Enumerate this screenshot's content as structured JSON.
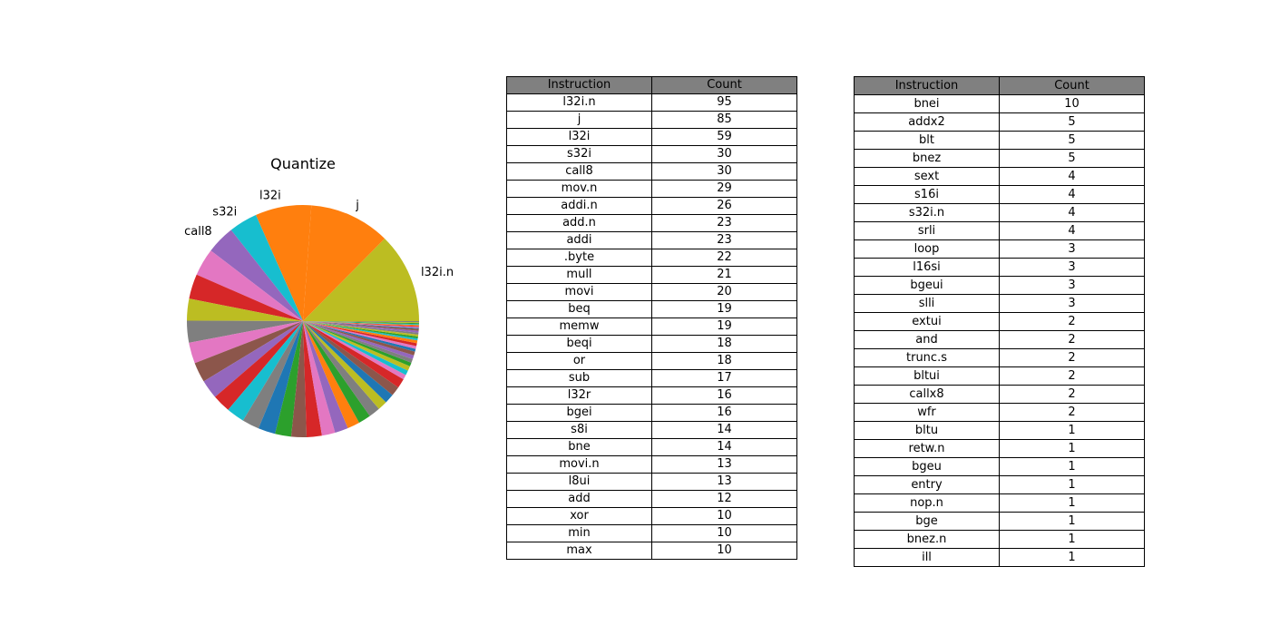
{
  "chart_data": {
    "type": "pie",
    "title": "Quantize",
    "slices": [
      {
        "label": "l32i.n",
        "value": 95,
        "color": "#bcbd22",
        "show_label": true
      },
      {
        "label": "j",
        "value": 85,
        "color": "#ff7f0e",
        "show_label": true
      },
      {
        "label": "l32i",
        "value": 59,
        "color": "#ff7f0e",
        "show_label": true
      },
      {
        "label": "s32i",
        "value": 30,
        "color": "#17becf",
        "show_label": true
      },
      {
        "label": "call8",
        "value": 30,
        "color": "#9467bd",
        "show_label": true
      },
      {
        "label": "mov.n",
        "value": 29,
        "color": "#e377c2",
        "show_label": false
      },
      {
        "label": "addi.n",
        "value": 26,
        "color": "#d62728",
        "show_label": false
      },
      {
        "label": "add.n",
        "value": 23,
        "color": "#bcbd22",
        "show_label": false
      },
      {
        "label": "addi",
        "value": 23,
        "color": "#7f7f7f",
        "show_label": false
      },
      {
        "label": ".byte",
        "value": 22,
        "color": "#e377c2",
        "show_label": false
      },
      {
        "label": "mull",
        "value": 21,
        "color": "#8c564b",
        "show_label": false
      },
      {
        "label": "movi",
        "value": 20,
        "color": "#9467bd",
        "show_label": false
      },
      {
        "label": "beq",
        "value": 19,
        "color": "#d62728",
        "show_label": false
      },
      {
        "label": "memw",
        "value": 19,
        "color": "#17becf",
        "show_label": false
      },
      {
        "label": "beqi",
        "value": 18,
        "color": "#7f7f7f",
        "show_label": false
      },
      {
        "label": "or",
        "value": 18,
        "color": "#1f77b4",
        "show_label": false
      },
      {
        "label": "sub",
        "value": 17,
        "color": "#2ca02c",
        "show_label": false
      },
      {
        "label": "l32r",
        "value": 16,
        "color": "#8c564b",
        "show_label": false
      },
      {
        "label": "bgei",
        "value": 16,
        "color": "#d62728",
        "show_label": false
      },
      {
        "label": "s8i",
        "value": 14,
        "color": "#e377c2",
        "show_label": false
      },
      {
        "label": "bne",
        "value": 14,
        "color": "#9467bd",
        "show_label": false
      },
      {
        "label": "movi.n",
        "value": 13,
        "color": "#ff7f0e",
        "show_label": false
      },
      {
        "label": "l8ui",
        "value": 13,
        "color": "#2ca02c",
        "show_label": false
      },
      {
        "label": "add",
        "value": 12,
        "color": "#7f7f7f",
        "show_label": false
      },
      {
        "label": "xor",
        "value": 10,
        "color": "#bcbd22",
        "show_label": false
      },
      {
        "label": "min",
        "value": 10,
        "color": "#1f77b4",
        "show_label": false
      },
      {
        "label": "max",
        "value": 10,
        "color": "#8c564b",
        "show_label": false
      },
      {
        "label": "bnei",
        "value": 10,
        "color": "#d62728",
        "show_label": false
      },
      {
        "label": "addx2",
        "value": 5,
        "color": "#e377c2",
        "show_label": false
      },
      {
        "label": "blt",
        "value": 5,
        "color": "#17becf",
        "show_label": false
      },
      {
        "label": "bnez",
        "value": 5,
        "color": "#bcbd22",
        "show_label": false
      },
      {
        "label": "sext",
        "value": 4,
        "color": "#2ca02c",
        "show_label": false
      },
      {
        "label": "s16i",
        "value": 4,
        "color": "#7f7f7f",
        "show_label": false
      },
      {
        "label": "s32i.n",
        "value": 4,
        "color": "#9467bd",
        "show_label": false
      },
      {
        "label": "srli",
        "value": 4,
        "color": "#8c564b",
        "show_label": false
      },
      {
        "label": "loop",
        "value": 3,
        "color": "#1f77b4",
        "show_label": false
      },
      {
        "label": "l16si",
        "value": 3,
        "color": "#e377c2",
        "show_label": false
      },
      {
        "label": "bgeui",
        "value": 3,
        "color": "#d62728",
        "show_label": false
      },
      {
        "label": "slli",
        "value": 3,
        "color": "#ff7f0e",
        "show_label": false
      },
      {
        "label": "extui",
        "value": 2,
        "color": "#17becf",
        "show_label": false
      },
      {
        "label": "and",
        "value": 2,
        "color": "#2ca02c",
        "show_label": false
      },
      {
        "label": "trunc.s",
        "value": 2,
        "color": "#bcbd22",
        "show_label": false
      },
      {
        "label": "bltui",
        "value": 2,
        "color": "#7f7f7f",
        "show_label": false
      },
      {
        "label": "callx8",
        "value": 2,
        "color": "#9467bd",
        "show_label": false
      },
      {
        "label": "wfr",
        "value": 2,
        "color": "#8c564b",
        "show_label": false
      },
      {
        "label": "bltu",
        "value": 1,
        "color": "#1f77b4",
        "show_label": false
      },
      {
        "label": "retw.n",
        "value": 1,
        "color": "#e377c2",
        "show_label": false
      },
      {
        "label": "bgeu",
        "value": 1,
        "color": "#d62728",
        "show_label": false
      },
      {
        "label": "entry",
        "value": 1,
        "color": "#ff7f0e",
        "show_label": false
      },
      {
        "label": "nop.n",
        "value": 1,
        "color": "#17becf",
        "show_label": false
      },
      {
        "label": "bge",
        "value": 1,
        "color": "#2ca02c",
        "show_label": false
      },
      {
        "label": "bnez.n",
        "value": 1,
        "color": "#bcbd22",
        "show_label": false
      },
      {
        "label": "ill",
        "value": 1,
        "color": "#7f7f7f",
        "show_label": false
      }
    ]
  },
  "tables": {
    "left": {
      "headers": [
        "Instruction",
        "Count"
      ],
      "header_color": "#808080",
      "rows": [
        [
          "l32i.n",
          "95"
        ],
        [
          "j",
          "85"
        ],
        [
          "l32i",
          "59"
        ],
        [
          "s32i",
          "30"
        ],
        [
          "call8",
          "30"
        ],
        [
          "mov.n",
          "29"
        ],
        [
          "addi.n",
          "26"
        ],
        [
          "add.n",
          "23"
        ],
        [
          "addi",
          "23"
        ],
        [
          ".byte",
          "22"
        ],
        [
          "mull",
          "21"
        ],
        [
          "movi",
          "20"
        ],
        [
          "beq",
          "19"
        ],
        [
          "memw",
          "19"
        ],
        [
          "beqi",
          "18"
        ],
        [
          "or",
          "18"
        ],
        [
          "sub",
          "17"
        ],
        [
          "l32r",
          "16"
        ],
        [
          "bgei",
          "16"
        ],
        [
          "s8i",
          "14"
        ],
        [
          "bne",
          "14"
        ],
        [
          "movi.n",
          "13"
        ],
        [
          "l8ui",
          "13"
        ],
        [
          "add",
          "12"
        ],
        [
          "xor",
          "10"
        ],
        [
          "min",
          "10"
        ],
        [
          "max",
          "10"
        ]
      ]
    },
    "right": {
      "headers": [
        "Instruction",
        "Count"
      ],
      "header_color": "#808080",
      "rows": [
        [
          "bnei",
          "10"
        ],
        [
          "addx2",
          "5"
        ],
        [
          "blt",
          "5"
        ],
        [
          "bnez",
          "5"
        ],
        [
          "sext",
          "4"
        ],
        [
          "s16i",
          "4"
        ],
        [
          "s32i.n",
          "4"
        ],
        [
          "srli",
          "4"
        ],
        [
          "loop",
          "3"
        ],
        [
          "l16si",
          "3"
        ],
        [
          "bgeui",
          "3"
        ],
        [
          "slli",
          "3"
        ],
        [
          "extui",
          "2"
        ],
        [
          "and",
          "2"
        ],
        [
          "trunc.s",
          "2"
        ],
        [
          "bltui",
          "2"
        ],
        [
          "callx8",
          "2"
        ],
        [
          "wfr",
          "2"
        ],
        [
          "bltu",
          "1"
        ],
        [
          "retw.n",
          "1"
        ],
        [
          "bgeu",
          "1"
        ],
        [
          "entry",
          "1"
        ],
        [
          "nop.n",
          "1"
        ],
        [
          "bge",
          "1"
        ],
        [
          "bnez.n",
          "1"
        ],
        [
          "ill",
          "1"
        ]
      ]
    }
  }
}
